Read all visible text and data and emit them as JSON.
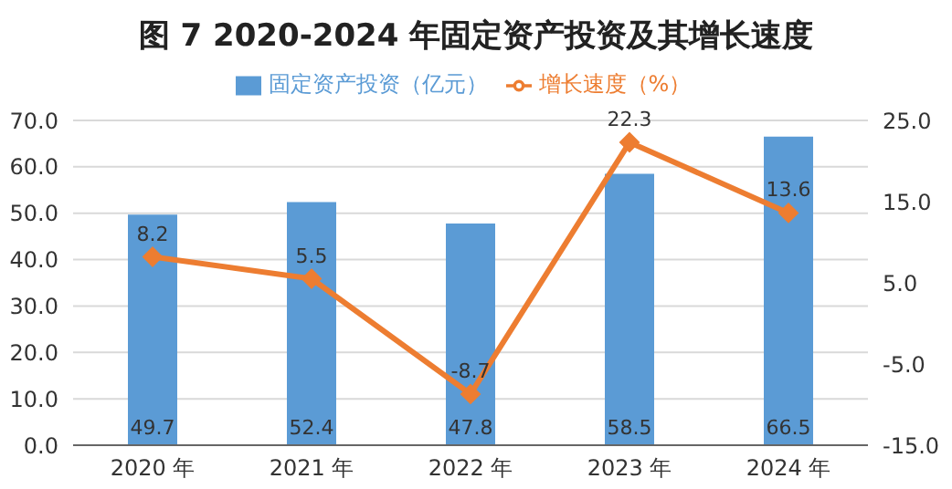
{
  "chart_data": {
    "type": "bar",
    "title": "图 7  2020-2024 年固定资产投资及其增长速度",
    "categories": [
      "2020 年",
      "2021 年",
      "2022 年",
      "2023 年",
      "2024 年"
    ],
    "series": [
      {
        "name": "固定资产投资（亿元）",
        "color": "#5b9bd5",
        "values": [
          49.7,
          52.4,
          47.8,
          58.5,
          66.5
        ]
      },
      {
        "name": "增长速度（%）",
        "type": "line",
        "axis": "y2",
        "color": "#ed7d31",
        "values": [
          8.2,
          5.5,
          -8.7,
          22.3,
          13.6
        ]
      }
    ],
    "ylim": [
      0,
      70
    ],
    "yticks": [
      {
        "value": 0,
        "label": "0.0"
      },
      {
        "value": 10,
        "label": "10.0"
      },
      {
        "value": 20,
        "label": "20.0"
      },
      {
        "value": 30,
        "label": "30.0"
      },
      {
        "value": 40,
        "label": "40.0"
      },
      {
        "value": 50,
        "label": "50.0"
      },
      {
        "value": 60,
        "label": "60.0"
      },
      {
        "value": 70,
        "label": "70.0"
      }
    ],
    "y2lim": [
      -15,
      25
    ],
    "y2ticks": [
      {
        "value": -15,
        "label": "-15.0"
      },
      {
        "value": -5,
        "label": "-5.0"
      },
      {
        "value": 5,
        "label": "5.0"
      },
      {
        "value": 15,
        "label": "15.0"
      },
      {
        "value": 25,
        "label": "25.0"
      }
    ],
    "grid": "y",
    "legend": "top",
    "marker": "diamond",
    "data_labels": true
  }
}
